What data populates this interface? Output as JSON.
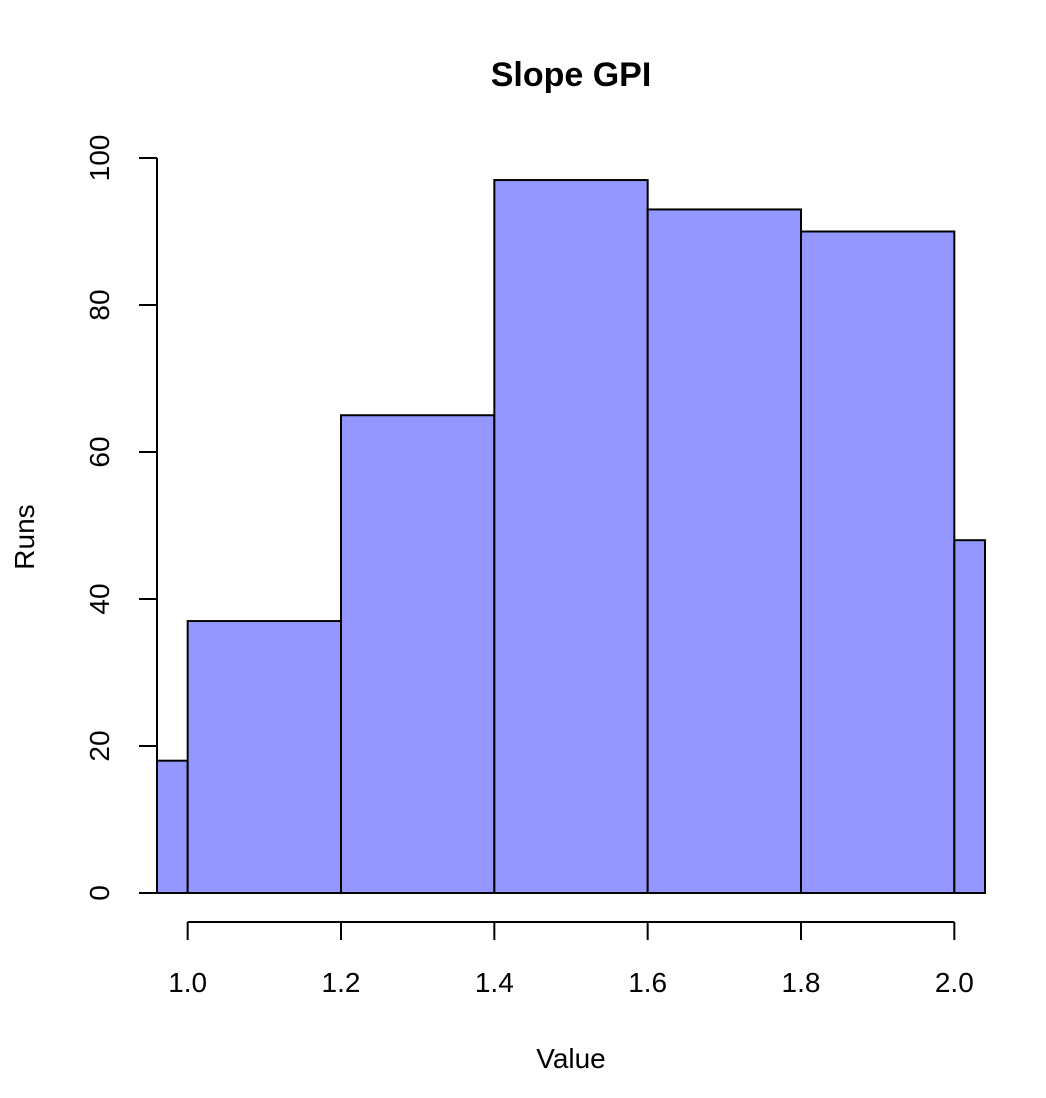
{
  "chart_data": {
    "type": "bar",
    "title": "Slope GPI",
    "xlabel": "Value",
    "ylabel": "Runs",
    "bar_color": "#9397ff",
    "bins": [
      {
        "x0": 0.96,
        "x1": 1.0,
        "value": 18
      },
      {
        "x0": 1.0,
        "x1": 1.2,
        "value": 37
      },
      {
        "x0": 1.2,
        "x1": 1.4,
        "value": 65
      },
      {
        "x0": 1.4,
        "x1": 1.6,
        "value": 97
      },
      {
        "x0": 1.6,
        "x1": 1.8,
        "value": 93
      },
      {
        "x0": 1.8,
        "x1": 2.0,
        "value": 90
      },
      {
        "x0": 2.0,
        "x1": 2.04,
        "value": 48
      }
    ],
    "xlim": [
      0.96,
      2.04
    ],
    "ylim": [
      0,
      100
    ],
    "xticks": [
      {
        "value": 1.0,
        "label": "1.0"
      },
      {
        "value": 1.2,
        "label": "1.2"
      },
      {
        "value": 1.4,
        "label": "1.4"
      },
      {
        "value": 1.6,
        "label": "1.6"
      },
      {
        "value": 1.8,
        "label": "1.8"
      },
      {
        "value": 2.0,
        "label": "2.0"
      }
    ],
    "yticks": [
      {
        "value": 0,
        "label": "0"
      },
      {
        "value": 20,
        "label": "20"
      },
      {
        "value": 40,
        "label": "40"
      },
      {
        "value": 60,
        "label": "60"
      },
      {
        "value": 80,
        "label": "80"
      },
      {
        "value": 100,
        "label": "100"
      }
    ],
    "grid": false
  }
}
